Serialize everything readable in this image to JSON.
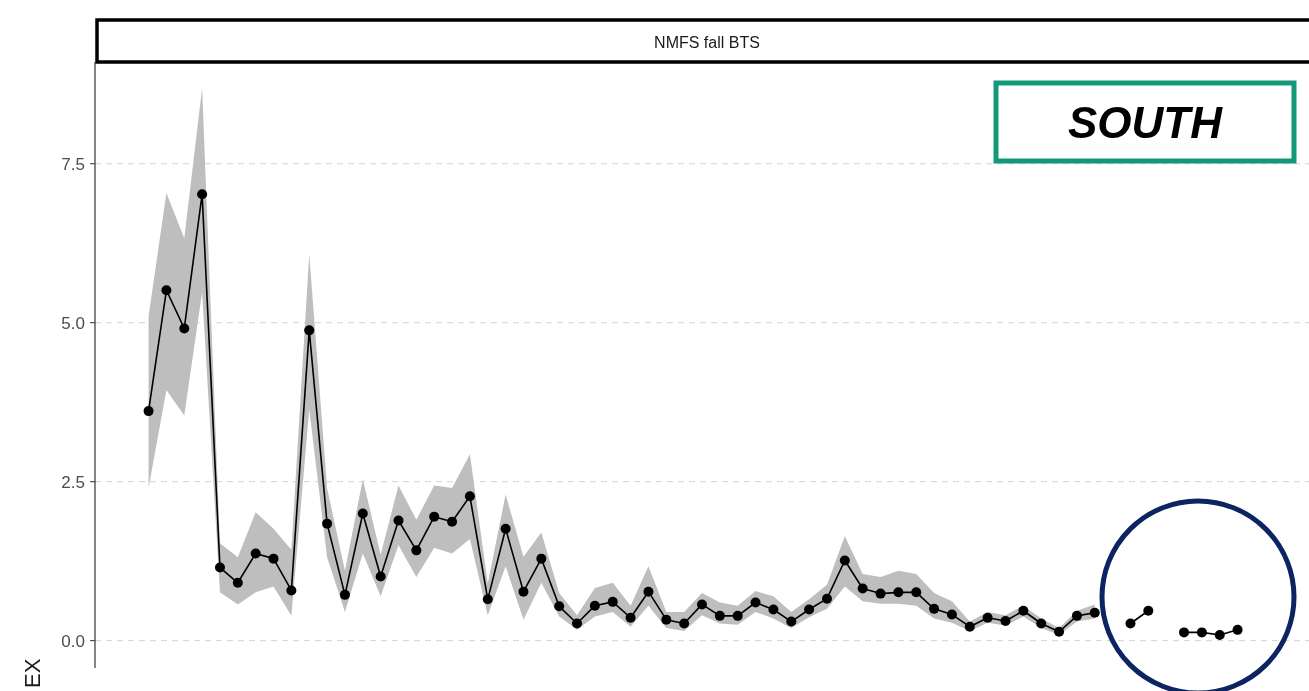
{
  "chart_data": {
    "type": "line",
    "title": "NMFS fall BTS",
    "ylabel": "EX",
    "annotations": [
      "SOUTH"
    ],
    "categories": [
      null,
      null,
      null,
      null,
      null,
      null,
      null,
      null,
      null,
      null,
      null,
      null,
      null,
      null,
      null,
      null,
      null,
      null,
      null,
      null,
      null,
      null,
      null,
      null,
      null,
      null,
      null,
      null,
      null,
      null,
      null,
      null,
      null,
      null,
      null,
      null,
      null,
      null,
      null,
      null,
      null,
      null,
      null,
      null,
      null,
      null,
      null,
      null,
      null,
      null,
      null,
      null,
      null,
      null,
      null,
      null,
      null,
      null,
      null,
      null,
      null,
      null
    ],
    "series": [
      {
        "color": "#000000",
        "values": [
          3.61,
          5.51,
          4.91,
          7.02,
          1.15,
          0.91,
          1.37,
          1.29,
          0.79,
          4.88,
          1.84,
          0.72,
          2.0,
          1.01,
          1.89,
          1.42,
          1.95,
          1.87,
          2.27,
          0.65,
          1.76,
          0.77,
          1.29,
          0.54,
          0.27,
          0.55,
          0.61,
          0.36,
          0.77,
          0.33,
          0.27,
          0.57,
          0.39,
          0.39,
          0.6,
          0.49,
          0.3,
          0.49,
          0.66,
          1.26,
          0.82,
          0.74,
          0.76,
          0.76,
          0.5,
          0.41,
          0.22,
          0.36,
          0.31,
          0.47,
          0.27,
          0.14,
          0.39,
          0.44,
          null,
          0.27,
          0.47,
          null,
          0.13,
          0.13,
          0.09,
          0.17
        ],
        "lower": [
          2.4,
          3.94,
          3.54,
          5.48,
          0.76,
          0.57,
          0.76,
          0.85,
          0.39,
          3.64,
          1.31,
          0.45,
          1.37,
          0.7,
          1.5,
          1.0,
          1.46,
          1.37,
          1.6,
          0.4,
          1.17,
          0.33,
          0.91,
          0.38,
          0.17,
          0.38,
          0.45,
          0.22,
          0.55,
          0.2,
          0.15,
          0.4,
          0.27,
          0.25,
          0.45,
          0.35,
          0.2,
          0.37,
          0.5,
          0.85,
          0.62,
          0.58,
          0.58,
          0.55,
          0.35,
          0.28,
          0.15,
          0.28,
          0.24,
          0.38,
          0.2,
          0.09,
          0.3,
          0.35,
          null,
          null,
          null,
          null,
          null,
          null,
          null,
          null
        ],
        "upper": [
          5.1,
          7.04,
          6.33,
          8.69,
          1.53,
          1.31,
          2.02,
          1.76,
          1.43,
          6.08,
          2.4,
          1.1,
          2.54,
          1.35,
          2.44,
          1.9,
          2.44,
          2.4,
          2.93,
          0.9,
          2.3,
          1.32,
          1.7,
          0.75,
          0.4,
          0.83,
          0.91,
          0.55,
          1.17,
          0.45,
          0.45,
          0.75,
          0.6,
          0.55,
          0.78,
          0.7,
          0.45,
          0.65,
          0.88,
          1.64,
          1.05,
          1.0,
          1.1,
          1.05,
          0.75,
          0.62,
          0.3,
          0.45,
          0.4,
          0.55,
          0.35,
          0.2,
          0.47,
          0.57,
          null,
          null,
          null,
          null,
          null,
          null,
          null,
          null
        ]
      }
    ],
    "ylim": [
      -0.43,
      9.1
    ],
    "yticks": [
      {
        "value": 0,
        "label": "0.0"
      },
      {
        "value": 2.5,
        "label": "2.5"
      },
      {
        "value": 5,
        "label": "5.0"
      },
      {
        "value": 7.5,
        "label": "7.5"
      }
    ],
    "grid": "y",
    "marker": "circle",
    "line_style": "solid"
  }
}
